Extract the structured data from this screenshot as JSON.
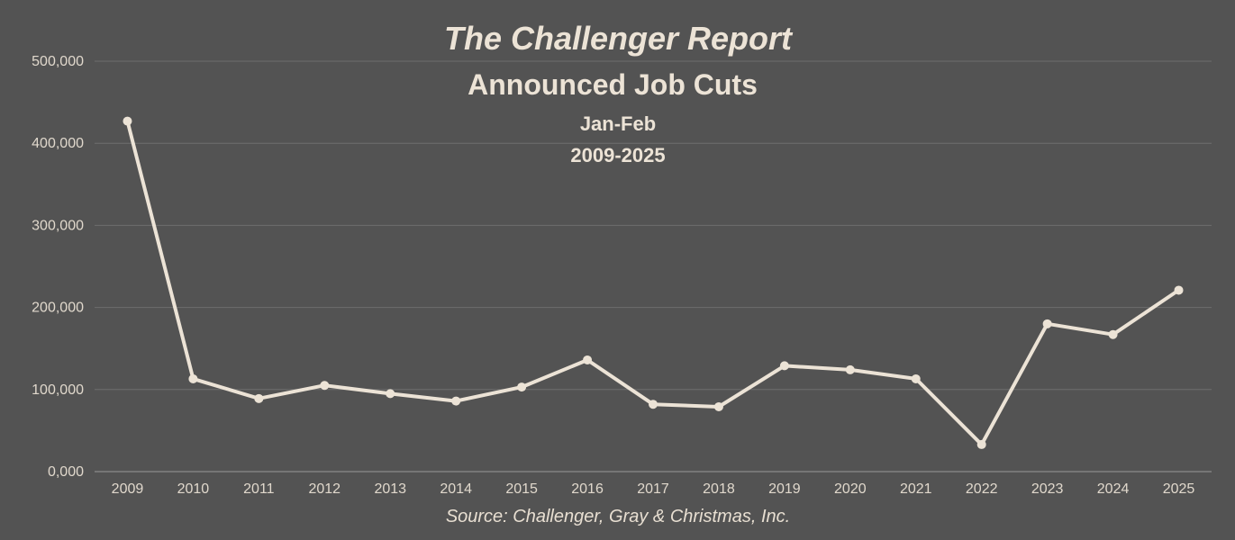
{
  "chart_data": {
    "type": "line",
    "title": "The Challenger Report",
    "subtitle": "Announced Job Cuts",
    "subtitle2": "Jan-Feb",
    "subtitle3": "2009-2025",
    "source": "Source: Challenger, Gray & Christmas, Inc.",
    "xlabel": "",
    "ylabel": "",
    "categories": [
      "2009",
      "2010",
      "2011",
      "2012",
      "2013",
      "2014",
      "2015",
      "2016",
      "2017",
      "2018",
      "2019",
      "2020",
      "2021",
      "2022",
      "2023",
      "2024",
      "2025"
    ],
    "series": [
      {
        "values": [
          427000,
          113000,
          89000,
          105000,
          95000,
          86000,
          103000,
          136000,
          82000,
          79000,
          129000,
          124000,
          113000,
          33000,
          180000,
          167000,
          221000
        ]
      }
    ],
    "yticks": [
      "0,000",
      "100,000",
      "200,000",
      "300,000",
      "400,000",
      "500,000"
    ],
    "ylim": [
      0,
      500000
    ],
    "grid": true,
    "legend": "none",
    "colors": {
      "background": "#535353",
      "line": "#ece3d6",
      "grid": "#6e6e6e",
      "text": "#ece3d6"
    }
  }
}
